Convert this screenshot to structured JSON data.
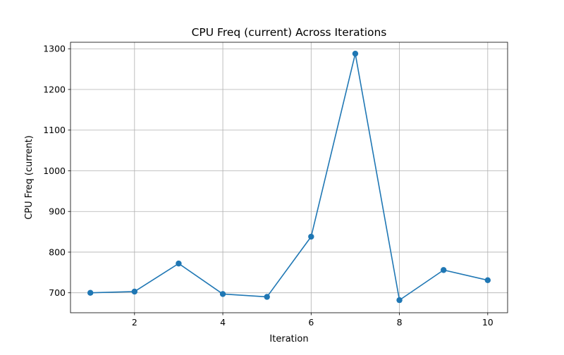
{
  "chart_data": {
    "type": "line",
    "title": "CPU Freq (current) Across Iterations",
    "xlabel": "Iteration",
    "ylabel": "CPU Freq (current)",
    "x": [
      1,
      2,
      3,
      4,
      5,
      6,
      7,
      8,
      9,
      10
    ],
    "series": [
      {
        "values": [
          700,
          703,
          772,
          697,
          690,
          838,
          1288,
          682,
          756,
          731
        ],
        "color": "#1f77b4",
        "marker": "circle"
      }
    ],
    "xlim": [
      0.55,
      10.45
    ],
    "ylim": [
      651,
      1316
    ],
    "xticks": [
      2,
      4,
      6,
      8,
      10
    ],
    "yticks": [
      700,
      800,
      900,
      1000,
      1100,
      1200,
      1300
    ],
    "grid": true,
    "grid_color": "#b0b0b0"
  }
}
